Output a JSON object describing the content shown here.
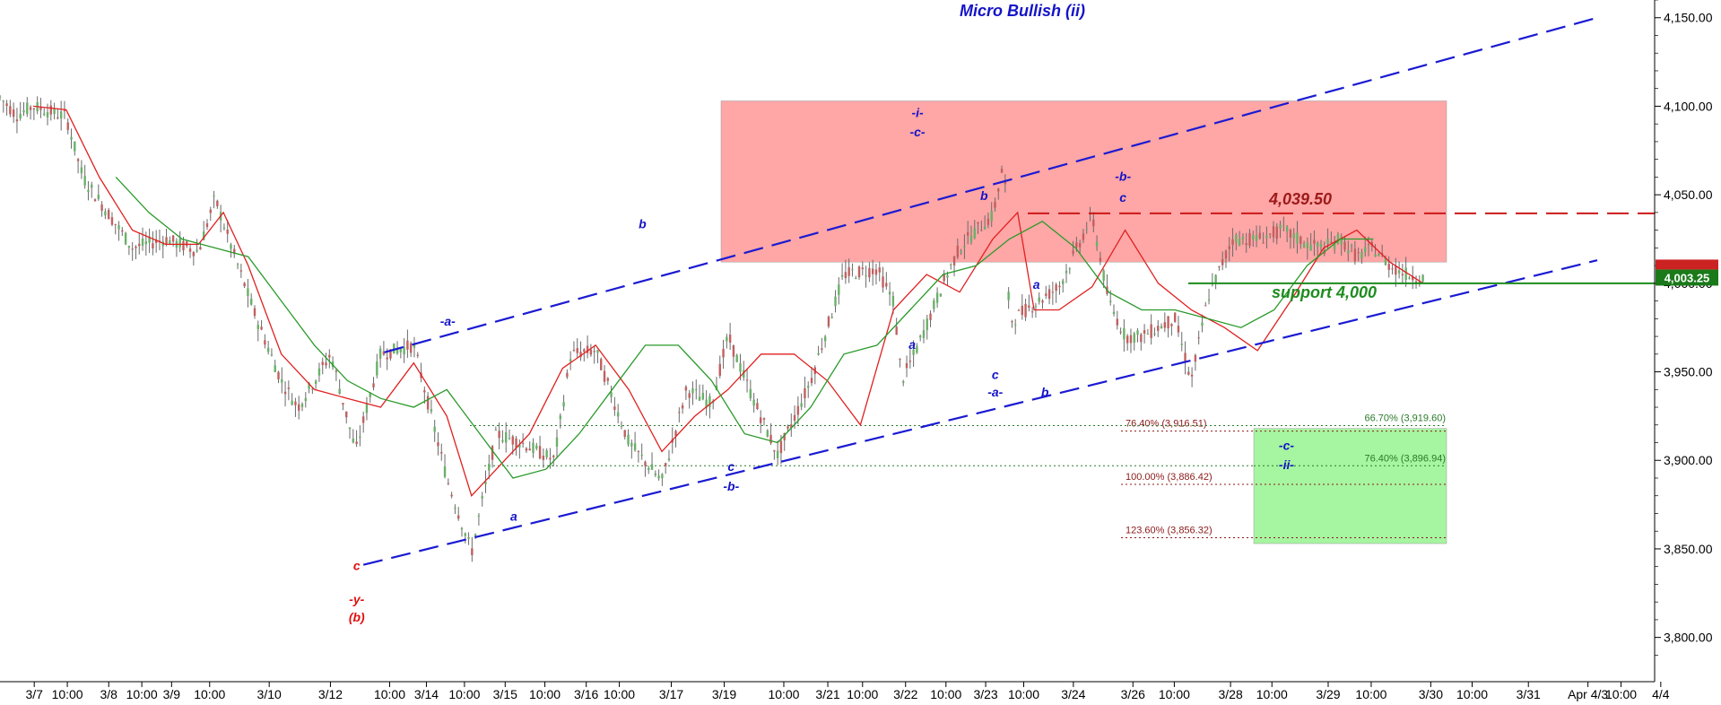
{
  "colors": {
    "wave_blue": "#1414c8",
    "wave_red": "#e01010",
    "resistance_red": "#cc1818",
    "support_green": "#1e8c1e",
    "fib_dark_red": "#8b1a1a",
    "fib_green": "#2a7a2a",
    "resistance_zone": "#ffa6a6",
    "target_zone": "#a6f5a0",
    "channel": "#1a1ad2",
    "ma_red": "#e02020",
    "ma_green": "#2a9a2a",
    "candle": "#6a6a6a"
  },
  "chart_data": {
    "type": "line",
    "title": "Micro Bullish (ii)",
    "xlabel": "",
    "ylabel": "",
    "ylim": [
      3775,
      4160
    ],
    "grid": false,
    "y_ticks": [
      {
        "value": 4150,
        "label": "4,150.00"
      },
      {
        "value": 4100,
        "label": "4,100.00"
      },
      {
        "value": 4050,
        "label": "4,050.00"
      },
      {
        "value": 4000,
        "label": "4,000.00"
      },
      {
        "value": 3950,
        "label": "3,950.00"
      },
      {
        "value": 3900,
        "label": "3,900.00"
      },
      {
        "value": 3850,
        "label": "3,850.00"
      },
      {
        "value": 3800,
        "label": "3,800.00"
      }
    ],
    "x_ticks": [
      "3/7",
      "10:00",
      "3/8",
      "10:00",
      "3/9",
      "10:00",
      "3/10",
      "3/12",
      "10:00",
      "3/14",
      "10:00",
      "3/15",
      "10:00",
      "3/16",
      "10:00",
      "3/17",
      "3/19",
      "10:00",
      "3/21",
      "10:00",
      "3/22",
      "10:00",
      "3/23",
      "10:00",
      "3/24",
      "3/26",
      "10:00",
      "3/28",
      "10:00",
      "3/29",
      "10:00",
      "3/30",
      "10:00",
      "3/31",
      "Apr 4/3",
      "10:00",
      "4/4"
    ],
    "last_price": {
      "value": 4003.25,
      "label": "4,003.25"
    },
    "series": [
      {
        "kind": "price",
        "x": [
          0,
          0.01,
          0.02,
          0.04,
          0.05,
          0.08,
          0.1,
          0.12,
          0.13,
          0.14,
          0.155,
          0.17,
          0.18,
          0.2,
          0.215,
          0.23,
          0.25,
          0.27,
          0.285,
          0.3,
          0.315,
          0.335,
          0.345,
          0.36,
          0.38,
          0.4,
          0.415,
          0.43,
          0.44,
          0.455,
          0.47,
          0.49,
          0.51,
          0.53,
          0.54,
          0.545,
          0.555,
          0.57,
          0.58,
          0.59,
          0.6,
          0.607,
          0.61,
          0.62,
          0.64,
          0.66,
          0.67,
          0.68,
          0.69,
          0.7,
          0.71,
          0.72,
          0.73,
          0.745,
          0.76,
          0.775,
          0.79,
          0.8,
          0.81,
          0.82,
          0.83,
          0.84,
          0.85,
          0.86
        ],
        "values": [
          4105,
          4095,
          4100,
          4094,
          4060,
          4020,
          4025,
          4018,
          4048,
          4020,
          3980,
          3945,
          3930,
          3960,
          3905,
          3960,
          3965,
          3890,
          3848,
          3915,
          3910,
          3900,
          3960,
          3962,
          3910,
          3888,
          3940,
          3932,
          3970,
          3935,
          3903,
          3945,
          4005,
          4008,
          3990,
          3945,
          3965,
          4000,
          4020,
          4030,
          4038,
          4070,
          3978,
          3985,
          3998,
          4038,
          3990,
          3970,
          3970,
          3975,
          3980,
          3945,
          3992,
          4025,
          4025,
          4030,
          4022,
          4020,
          4025,
          4015,
          4020,
          4010,
          4005,
          4003
        ]
      },
      {
        "kind": "moving-average-fast",
        "x": [
          0.02,
          0.04,
          0.06,
          0.08,
          0.1,
          0.12,
          0.135,
          0.15,
          0.17,
          0.19,
          0.21,
          0.23,
          0.25,
          0.27,
          0.285,
          0.3,
          0.32,
          0.34,
          0.36,
          0.38,
          0.4,
          0.42,
          0.44,
          0.46,
          0.48,
          0.5,
          0.52,
          0.54,
          0.56,
          0.58,
          0.6,
          0.615,
          0.625,
          0.64,
          0.66,
          0.68,
          0.7,
          0.72,
          0.74,
          0.76,
          0.78,
          0.8,
          0.82,
          0.84,
          0.86
        ],
        "values": [
          4100,
          4098,
          4060,
          4030,
          4022,
          4022,
          4040,
          4010,
          3960,
          3940,
          3935,
          3930,
          3955,
          3925,
          3880,
          3895,
          3915,
          3952,
          3965,
          3940,
          3905,
          3925,
          3940,
          3960,
          3960,
          3945,
          3920,
          3985,
          4005,
          3995,
          4025,
          4040,
          3985,
          3985,
          3998,
          4030,
          4000,
          3985,
          3975,
          3962,
          3990,
          4020,
          4030,
          4012,
          4000
        ]
      },
      {
        "kind": "moving-average-slow",
        "x": [
          0.07,
          0.09,
          0.11,
          0.13,
          0.15,
          0.17,
          0.19,
          0.21,
          0.23,
          0.25,
          0.27,
          0.29,
          0.31,
          0.33,
          0.35,
          0.37,
          0.39,
          0.41,
          0.43,
          0.45,
          0.47,
          0.49,
          0.51,
          0.53,
          0.55,
          0.57,
          0.59,
          0.61,
          0.63,
          0.65,
          0.67,
          0.69,
          0.71,
          0.73,
          0.75,
          0.77,
          0.79,
          0.81,
          0.83
        ],
        "values": [
          4060,
          4040,
          4025,
          4020,
          4015,
          3990,
          3965,
          3945,
          3935,
          3930,
          3940,
          3915,
          3890,
          3895,
          3915,
          3940,
          3965,
          3965,
          3945,
          3915,
          3910,
          3930,
          3960,
          3965,
          3985,
          4005,
          4010,
          4025,
          4035,
          4020,
          3995,
          3985,
          3985,
          3980,
          3975,
          3985,
          4010,
          4025,
          4025
        ]
      }
    ],
    "annotations": [
      {
        "type": "zone",
        "name": "resistance-zone",
        "y_top": 4103,
        "y_bottom": 4012,
        "x_start": "3/19",
        "x_end": "3/28"
      },
      {
        "type": "zone",
        "name": "target-zone",
        "y_top": 3918,
        "y_bottom": 3853,
        "x_start": "3/28",
        "x_end": "3/31"
      },
      {
        "type": "hline",
        "name": "resistance-line",
        "value": 4039.5,
        "label": "4,039.50",
        "style": "dashed"
      },
      {
        "type": "hline",
        "name": "support-line",
        "value": 4000,
        "label": "support 4,000",
        "style": "solid"
      },
      {
        "type": "fib",
        "label": "76.40% (3,916.51)",
        "value": 3916.51,
        "color": "dark-red"
      },
      {
        "type": "fib",
        "label": "100.00% (3,886.42)",
        "value": 3886.42,
        "color": "dark-red"
      },
      {
        "type": "fib",
        "label": "123.60% (3,856.32)",
        "value": 3856.32,
        "color": "dark-red"
      },
      {
        "type": "fib",
        "label": "66.70% (3,919.60)",
        "value": 3919.6,
        "color": "green"
      },
      {
        "type": "fib",
        "label": "76.40% (3,896.94)",
        "value": 3896.94,
        "color": "green"
      }
    ],
    "wave_labels": [
      {
        "text": "c",
        "color": "red",
        "x": 0.2156,
        "y": 3838,
        "size": 14
      },
      {
        "text": "-y-",
        "color": "red",
        "x": 0.2156,
        "y": 3819,
        "size": 14
      },
      {
        "text": "(b)",
        "color": "red",
        "x": 0.2156,
        "y": 3809,
        "size": 14
      },
      {
        "text": "-a-",
        "color": "blue",
        "x": 0.2706,
        "y": 3976,
        "size": 14
      },
      {
        "text": "a",
        "color": "blue",
        "x": 0.3105,
        "y": 3866,
        "size": 14
      },
      {
        "text": "b",
        "color": "blue",
        "x": 0.3883,
        "y": 4031,
        "size": 14
      },
      {
        "text": "c",
        "color": "blue",
        "x": 0.4419,
        "y": 3894,
        "size": 14
      },
      {
        "text": "-b-",
        "color": "blue",
        "x": 0.4419,
        "y": 3883,
        "size": 14
      },
      {
        "text": "-i-",
        "color": "blue",
        "x": 0.5545,
        "y": 4094,
        "size": 14
      },
      {
        "text": "-c-",
        "color": "blue",
        "x": 0.5545,
        "y": 4083,
        "size": 14
      },
      {
        "text": "a",
        "color": "blue",
        "x": 0.5513,
        "y": 3963,
        "size": 14
      },
      {
        "text": "b",
        "color": "blue",
        "x": 0.5947,
        "y": 4047,
        "size": 14
      },
      {
        "text": "a",
        "color": "blue",
        "x": 0.6264,
        "y": 3997,
        "size": 14
      },
      {
        "text": "c",
        "color": "blue",
        "x": 0.6015,
        "y": 3946,
        "size": 14
      },
      {
        "text": "-a-",
        "color": "blue",
        "x": 0.6015,
        "y": 3936,
        "size": 14
      },
      {
        "text": "b",
        "color": "blue",
        "x": 0.6315,
        "y": 3936,
        "size": 14
      },
      {
        "text": "-b-",
        "color": "blue",
        "x": 0.6787,
        "y": 4058,
        "size": 14
      },
      {
        "text": "c",
        "color": "blue",
        "x": 0.6787,
        "y": 4046,
        "size": 14
      },
      {
        "text": "-c-",
        "color": "blue",
        "x": 0.7775,
        "y": 3906,
        "size": 14
      },
      {
        "text": "-ii-",
        "color": "blue",
        "x": 0.7775,
        "y": 3895,
        "size": 14
      }
    ],
    "channel": {
      "upper": [
        {
          "x": 0.2323,
          "y": 3961
        },
        {
          "x": 0.9653,
          "y": 4150
        }
      ],
      "lower": [
        {
          "x": 0.2196,
          "y": 3841
        },
        {
          "x": 0.9653,
          "y": 4013
        }
      ]
    }
  }
}
